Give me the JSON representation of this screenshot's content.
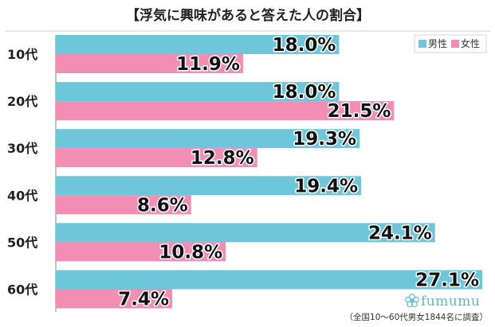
{
  "chart_data": {
    "type": "bar",
    "orientation": "horizontal",
    "title": "【浮気に興味があると答えた人の割合】",
    "categories": [
      "10代",
      "20代",
      "30代",
      "40代",
      "50代",
      "60代"
    ],
    "series": [
      {
        "name": "男性",
        "color": "#6ec6db",
        "values": [
          18.0,
          18.0,
          19.3,
          19.4,
          24.1,
          27.1
        ]
      },
      {
        "name": "女性",
        "color": "#f28db3",
        "values": [
          11.9,
          21.5,
          12.8,
          8.6,
          10.8,
          7.4
        ]
      }
    ],
    "value_suffix": "%",
    "xlim": [
      0,
      27.1
    ],
    "grid": false,
    "legend_position": "top-right",
    "note": "（全国10～60代男女1844名に調査）",
    "logo": "fumumu"
  }
}
